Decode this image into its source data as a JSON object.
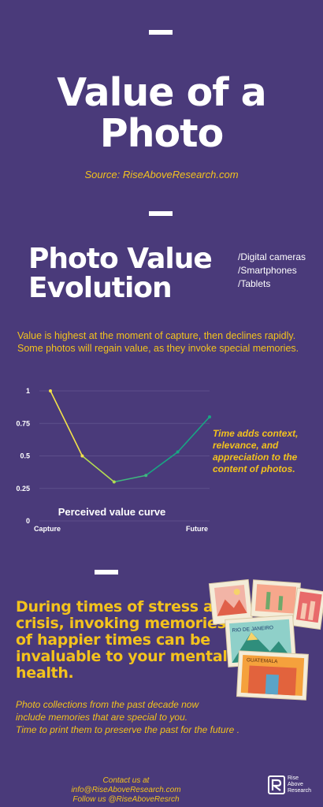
{
  "title": "Value of a Photo",
  "source": "Source: RiseAboveResearch.com",
  "section1": {
    "heading_line1": "Photo Value",
    "heading_line2": "Evolution",
    "devices": [
      "/Digital cameras",
      "/Smartphones",
      "/Tablets"
    ],
    "description": "Value is highest at the moment of capture, then declines rapidly. Some photos will regain value, as they invoke special memories."
  },
  "chart_data": {
    "type": "line",
    "title": "Perceived value curve",
    "x": [
      0,
      1,
      2,
      3,
      4,
      5
    ],
    "values": [
      1.0,
      0.5,
      0.3,
      0.35,
      0.53,
      0.8
    ],
    "x_tick_labels": {
      "0": "Capture",
      "5": "Future"
    },
    "y_ticks": [
      "0",
      "0.25",
      "0.5",
      "0.75",
      "1"
    ],
    "ylim": [
      0,
      1
    ],
    "grid": true,
    "colors": [
      "#f3e24a",
      "#b4db52",
      "#3fb77e",
      "#19a583"
    ]
  },
  "note": "Time adds context, relevance, and appreciation to the content of photos.",
  "section2": {
    "stress": "During times of stress and crisis, invoking memories of happier times can be invaluable to your mental health.",
    "collections": [
      "Photo collections from the past decade now",
      "include memories that are special to you.",
      "Time to  print them to preserve the past  for the future ."
    ],
    "postcard_1": "RIO DE JANEIRO",
    "postcard_2": "GUATEMALA"
  },
  "footer": {
    "contact": "Contact us at info@RiseAboveResearch.com",
    "follow": "Follow us @RiseAboveResrch",
    "logo_1": "Rise",
    "logo_2": "Above",
    "logo_3": "Research"
  }
}
